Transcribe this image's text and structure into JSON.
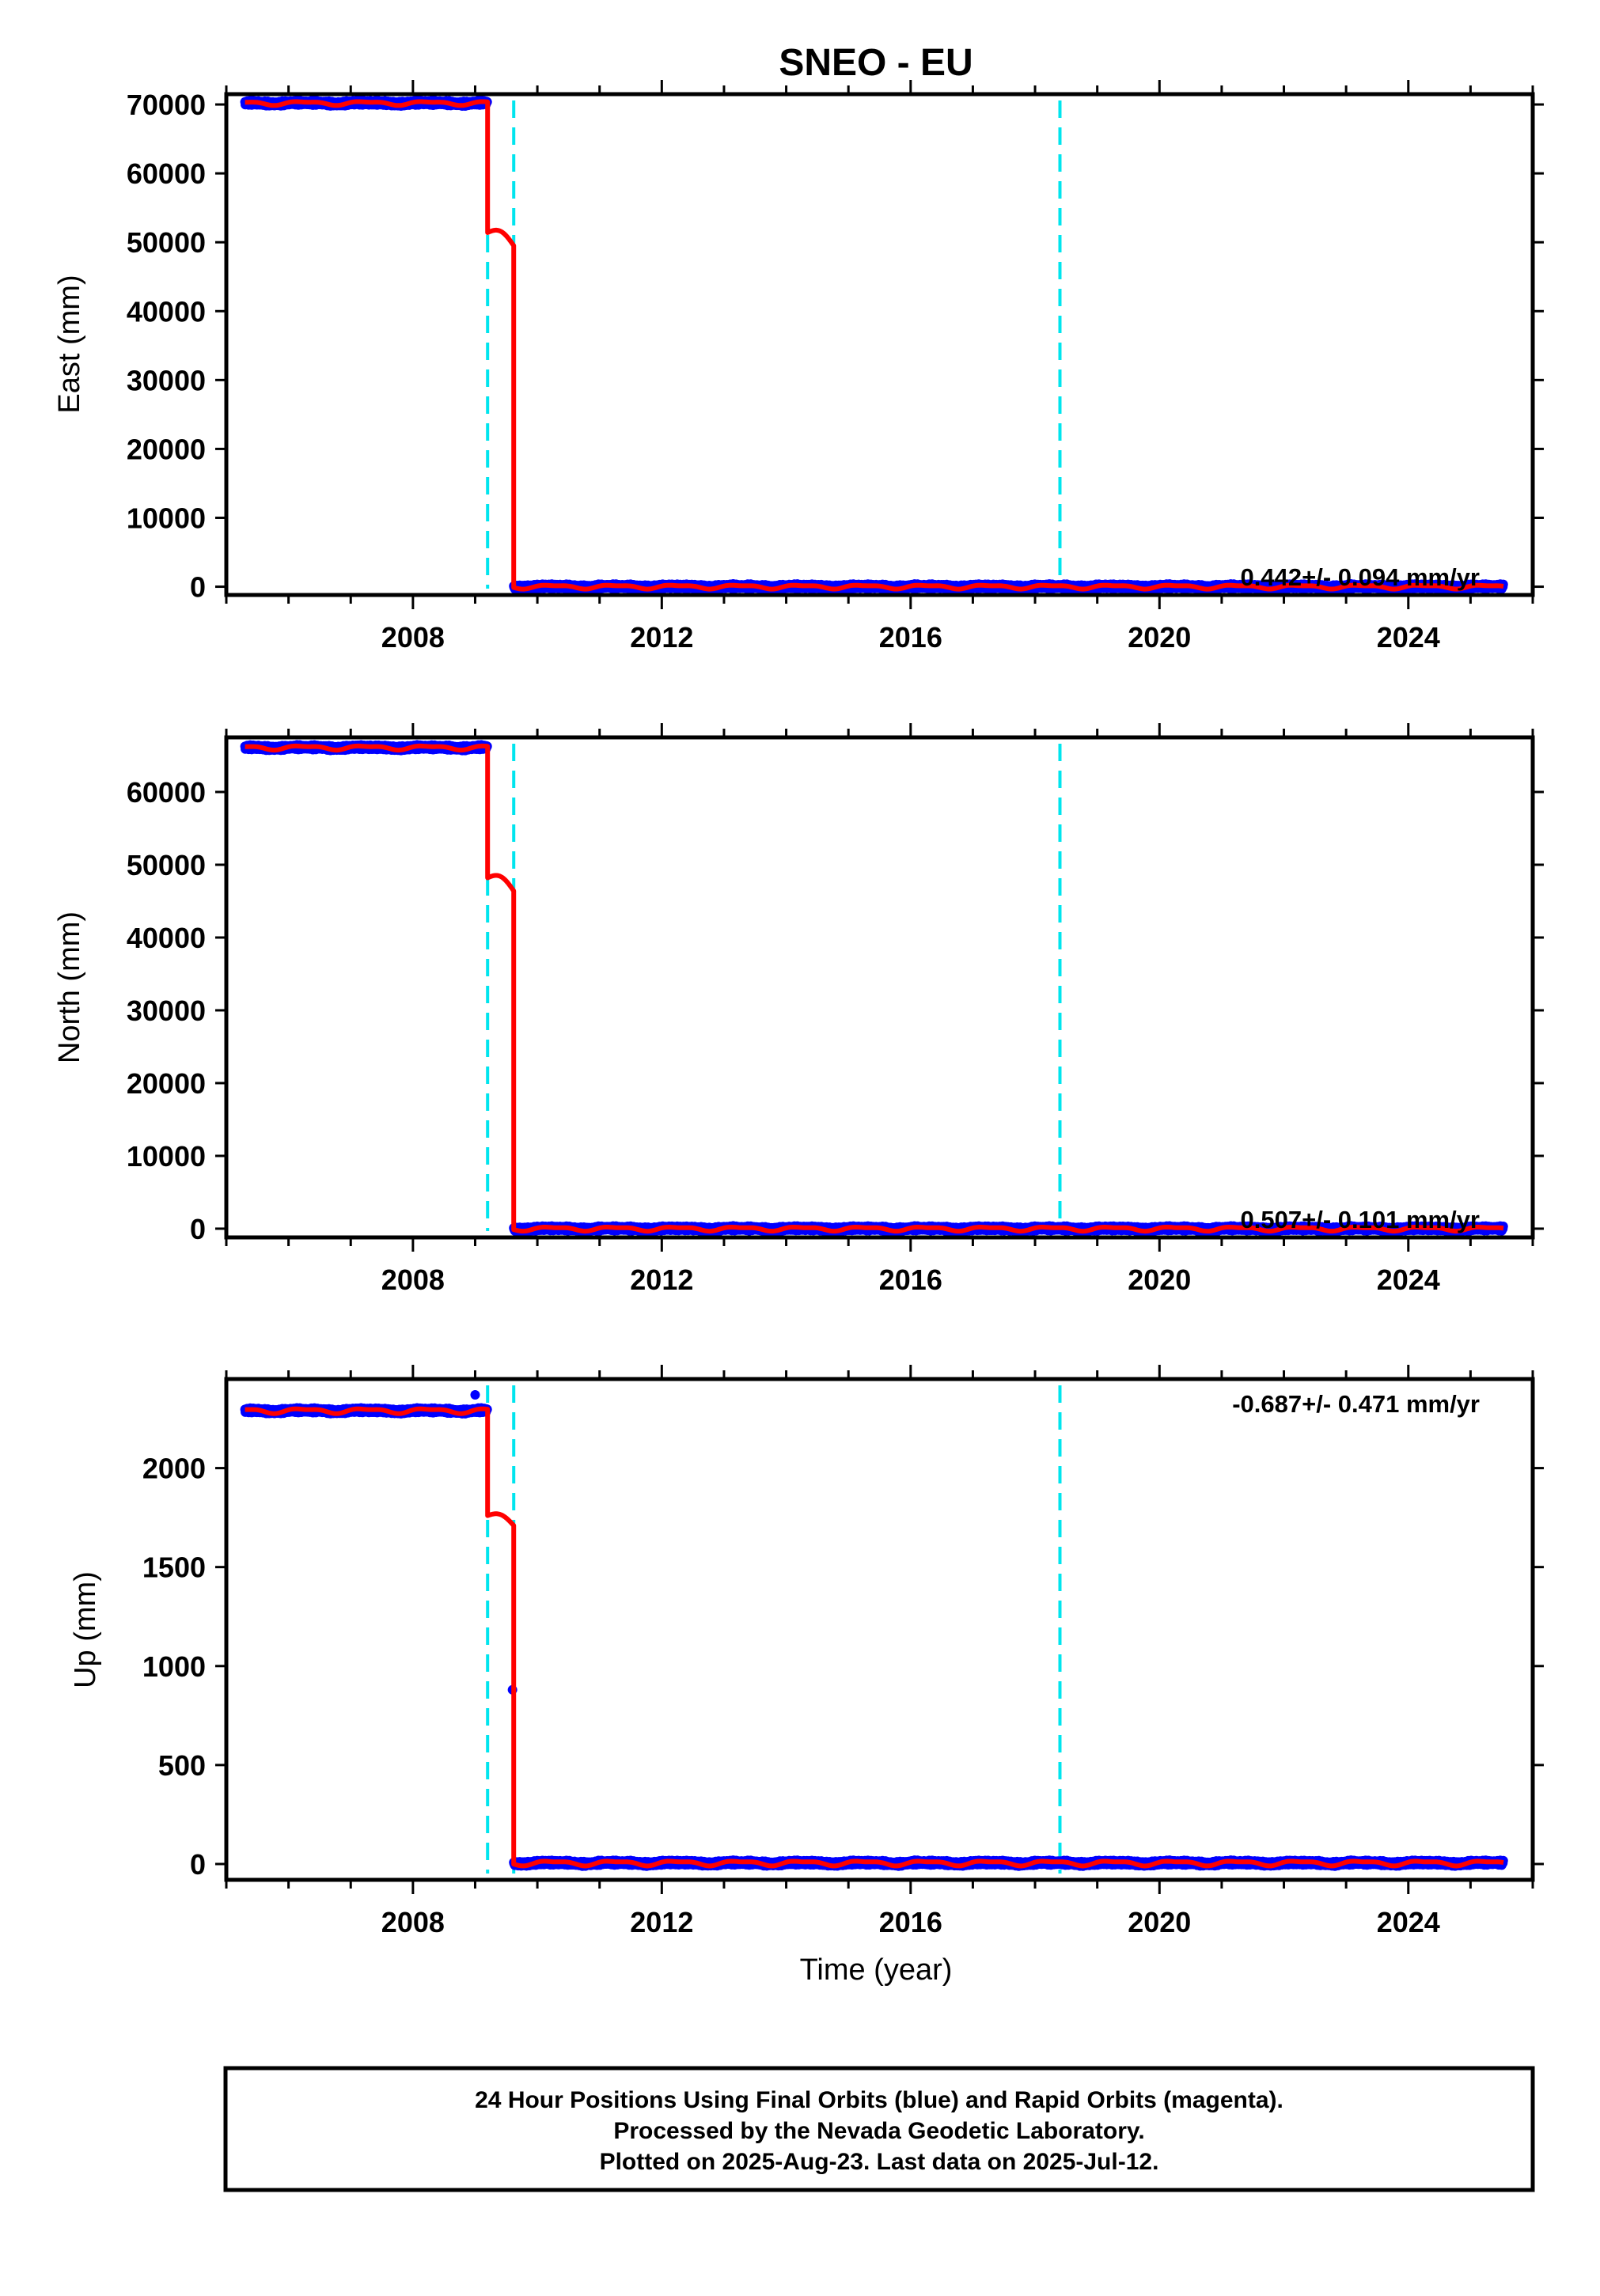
{
  "title": "SNEO - EU",
  "colors": {
    "data": "#0000ff",
    "model": "#ff0000",
    "event": "#00e5ee",
    "frame": "#000000"
  },
  "chart_data": [
    {
      "type": "scatter",
      "ylabel": "East (mm)",
      "xlim": [
        2005.0,
        2026.0
      ],
      "ylim": [
        -1200,
        71500
      ],
      "yticks": [
        0,
        10000,
        20000,
        30000,
        40000,
        50000,
        60000,
        70000
      ],
      "xticks": [
        2008,
        2012,
        2016,
        2020,
        2024
      ],
      "event_lines": [
        2009.2,
        2009.62,
        2018.4
      ],
      "rate_text": "0.442+/- 0.094 mm/yr",
      "segments": [
        {
          "x_start": 2005.3,
          "x_end": 2009.2,
          "level": 70200,
          "amplitude": 350,
          "model": true,
          "data": true
        },
        {
          "x_start": 2009.2,
          "x_end": 2009.62,
          "level": 51400,
          "end_level": 49500,
          "model": true,
          "data": false
        },
        {
          "x_start": 2009.62,
          "x_end": 2025.53,
          "level": 0,
          "amplitude": 350,
          "model": true,
          "data": true
        }
      ]
    },
    {
      "type": "scatter",
      "ylabel": "North (mm)",
      "xlim": [
        2005.0,
        2026.0
      ],
      "ylim": [
        -1200,
        67500
      ],
      "yticks": [
        0,
        10000,
        20000,
        30000,
        40000,
        50000,
        60000
      ],
      "xticks": [
        2008,
        2012,
        2016,
        2020,
        2024
      ],
      "event_lines": [
        2009.2,
        2009.62,
        2018.4
      ],
      "rate_text": "0.507+/- 0.101 mm/yr",
      "segments": [
        {
          "x_start": 2005.3,
          "x_end": 2009.2,
          "level": 66100,
          "amplitude": 350,
          "model": true,
          "data": true
        },
        {
          "x_start": 2009.2,
          "x_end": 2009.62,
          "level": 48200,
          "end_level": 46400,
          "model": true,
          "data": false
        },
        {
          "x_start": 2009.62,
          "x_end": 2025.53,
          "level": 0,
          "amplitude": 350,
          "model": true,
          "data": true
        }
      ]
    },
    {
      "type": "scatter",
      "ylabel": "Up (mm)",
      "xlim": [
        2005.0,
        2026.0
      ],
      "ylim": [
        -80,
        2450
      ],
      "yticks": [
        0,
        500,
        1000,
        1500,
        2000
      ],
      "xticks": [
        2008,
        2012,
        2016,
        2020,
        2024
      ],
      "event_lines": [
        2009.2,
        2009.62,
        2018.4
      ],
      "rate_text": "-0.687+/- 0.471 mm/yr",
      "segments": [
        {
          "x_start": 2005.3,
          "x_end": 2009.2,
          "level": 2290,
          "amplitude": 15,
          "model": true,
          "data": true
        },
        {
          "x_start": 2009.2,
          "x_end": 2009.62,
          "level": 1760,
          "end_level": 1710,
          "model": true,
          "data": false
        },
        {
          "x_start": 2009.62,
          "x_end": 2025.53,
          "level": 5,
          "amplitude": 15,
          "model": true,
          "data": true
        }
      ],
      "outliers": [
        {
          "x": 2009.0,
          "y": 2370
        },
        {
          "x": 2009.6,
          "y": 880
        }
      ]
    }
  ],
  "xlabel": "Time (year)",
  "caption": [
    "24 Hour Positions Using Final Orbits (blue) and Rapid Orbits (magenta).",
    "Processed by the Nevada Geodetic Laboratory.",
    "Plotted on 2025-Aug-23. Last data on 2025-Jul-12."
  ]
}
